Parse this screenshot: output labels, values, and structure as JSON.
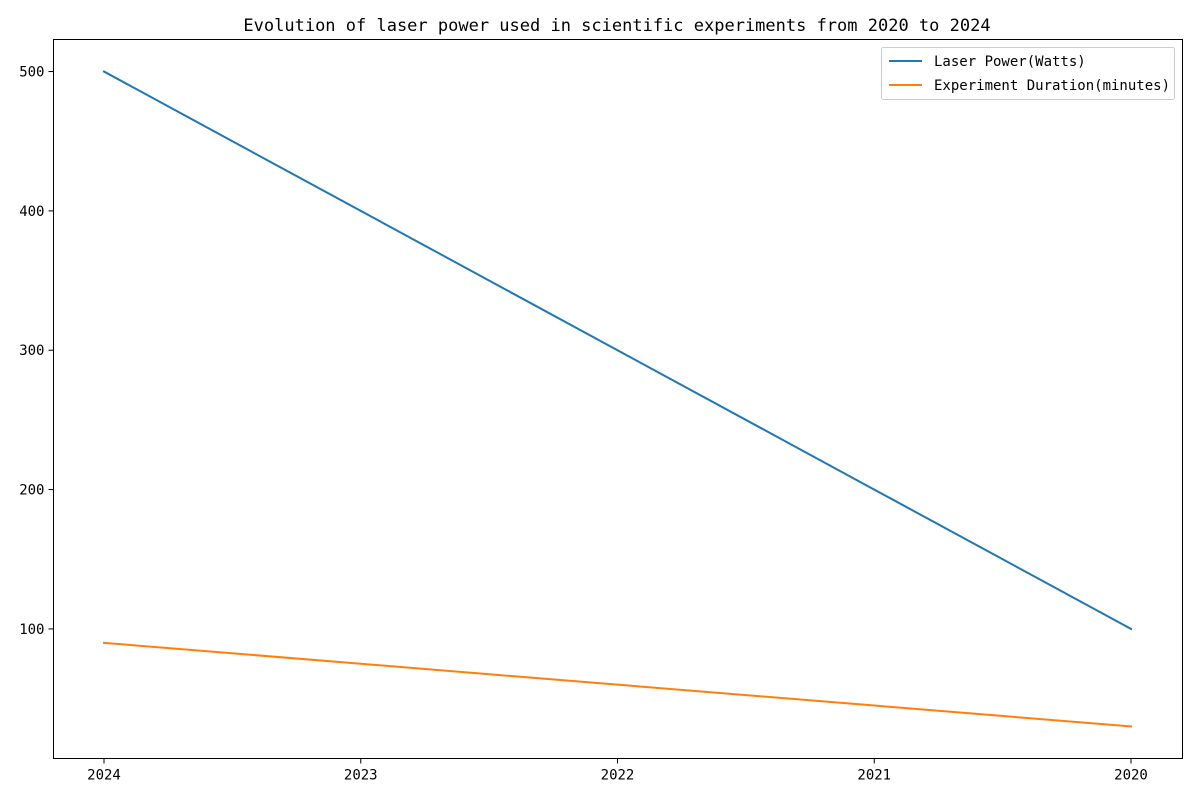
{
  "chart_data": {
    "type": "line",
    "title": "Evolution of laser power used in scientific experiments from 2020 to 2024",
    "xlabel": "",
    "ylabel": "",
    "categories": [
      "2024",
      "2023",
      "2022",
      "2021",
      "2020"
    ],
    "series": [
      {
        "name": "Laser Power(Watts)",
        "color": "#1f77b4",
        "values": [
          500,
          400,
          300,
          200,
          100
        ]
      },
      {
        "name": "Experiment Duration(minutes)",
        "color": "#ff7f0e",
        "values": [
          90,
          75,
          60,
          45,
          30
        ]
      }
    ],
    "yticks": [
      100,
      200,
      300,
      400,
      500
    ],
    "ylim": [
      7,
      523
    ],
    "grid": false,
    "legend_position": "top-right"
  }
}
